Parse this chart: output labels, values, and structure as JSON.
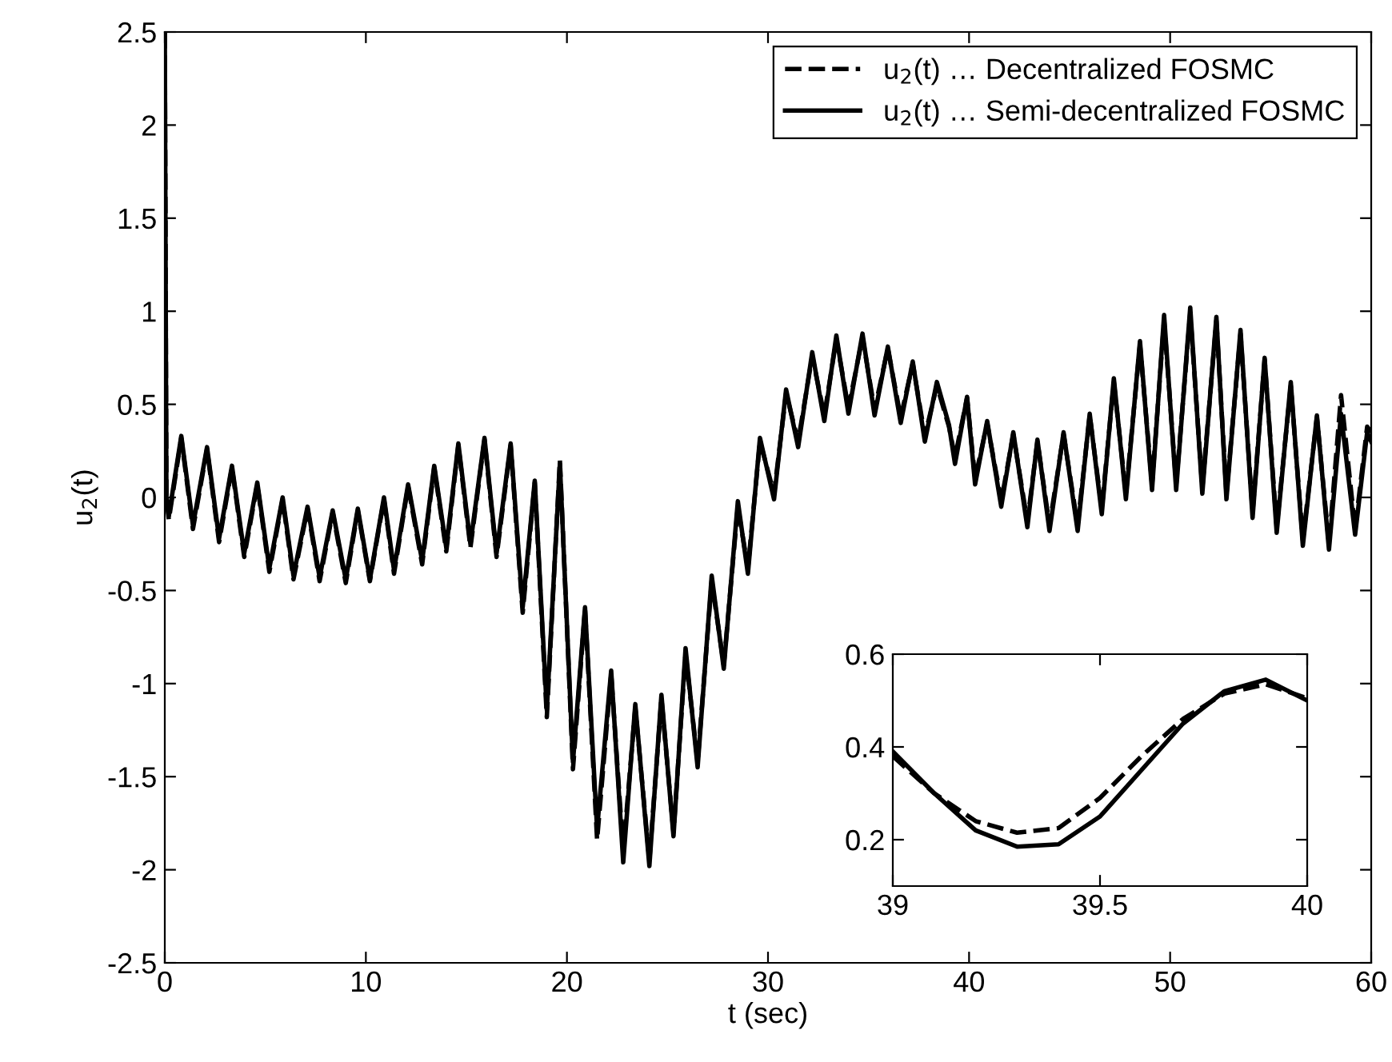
{
  "chart_data": [
    {
      "type": "line",
      "xlabel": "t (sec)",
      "ylabel": "u$_{2}$(t)",
      "xlim": [
        0,
        60
      ],
      "xticks": [
        0,
        10,
        20,
        30,
        40,
        50,
        60
      ],
      "ylim": [
        -2.5,
        2.5
      ],
      "yticks": [
        -2.5,
        -2,
        -1.5,
        -1,
        -0.5,
        0,
        0.5,
        1,
        1.5,
        2,
        2.5
      ],
      "grid": false,
      "legend": "top right",
      "x": [
        0,
        0.08,
        0.2,
        0.82,
        1.4,
        2.1,
        2.7,
        3.34,
        3.95,
        4.6,
        5.2,
        5.86,
        6.4,
        7.1,
        7.7,
        8.35,
        9.0,
        9.6,
        10.2,
        10.9,
        11.4,
        12.1,
        12.8,
        13.4,
        14.0,
        14.6,
        15.2,
        15.9,
        16.5,
        17.2,
        17.8,
        18.4,
        19.0,
        19.65,
        20.3,
        20.9,
        21.5,
        22.2,
        22.8,
        23.4,
        24.1,
        24.7,
        25.3,
        25.9,
        26.5,
        27.2,
        27.8,
        28.5,
        29.0,
        29.6,
        30.3,
        30.9,
        31.5,
        32.2,
        32.8,
        33.4,
        34.0,
        34.7,
        35.3,
        35.96,
        36.6,
        37.2,
        37.8,
        38.4,
        39.0,
        39.3,
        39.9,
        40.3,
        40.9,
        41.6,
        42.2,
        42.9,
        43.4,
        44.0,
        44.7,
        45.4,
        46.0,
        46.6,
        47.2,
        47.8,
        48.5,
        49.1,
        49.7,
        50.3,
        51.0,
        51.6,
        52.3,
        52.8,
        53.5,
        54.1,
        54.7,
        55.3,
        56.0,
        56.6,
        57.3,
        57.9,
        58.5,
        59.2,
        59.8,
        60
      ],
      "series": [
        {
          "name": "u$_{2}$(t) … Decentralized FOSMC",
          "color": "#000000",
          "line_style": "dashed",
          "values": [
            2.5,
            0.0,
            -0.12,
            0.32,
            -0.17,
            0.26,
            -0.24,
            0.16,
            -0.32,
            0.07,
            -0.4,
            -0.01,
            -0.44,
            -0.06,
            -0.45,
            -0.08,
            -0.46,
            -0.07,
            -0.45,
            -0.01,
            -0.41,
            0.06,
            -0.36,
            0.16,
            -0.29,
            0.28,
            -0.27,
            0.31,
            -0.32,
            0.28,
            -0.62,
            0.08,
            -1.18,
            0.2,
            -1.46,
            -0.6,
            -1.84,
            -0.95,
            -1.9,
            -1.13,
            -1.95,
            -1.08,
            -1.8,
            -0.84,
            -1.42,
            -0.45,
            -0.9,
            -0.05,
            -0.38,
            0.3,
            0.02,
            0.56,
            0.3,
            0.76,
            0.44,
            0.85,
            0.48,
            0.86,
            0.47,
            0.8,
            0.43,
            0.72,
            0.33,
            0.6,
            0.38,
            0.215,
            0.535,
            0.1,
            0.4,
            -0.02,
            0.34,
            -0.13,
            0.3,
            -0.15,
            0.34,
            -0.15,
            0.44,
            -0.06,
            0.62,
            0.02,
            0.82,
            0.07,
            0.95,
            0.07,
            0.99,
            0.05,
            0.95,
            0.02,
            0.88,
            -0.08,
            0.74,
            -0.16,
            0.6,
            -0.23,
            0.43,
            -0.25,
            0.55,
            -0.17,
            0.38,
            0.35
          ]
        },
        {
          "name": "u$_{2}$(t) … Semi-decentralized FOSMC",
          "color": "#000000",
          "line_style": "solid",
          "values": [
            2.5,
            0.0,
            -0.1,
            0.33,
            -0.15,
            0.27,
            -0.22,
            0.17,
            -0.3,
            0.08,
            -0.38,
            0.0,
            -0.42,
            -0.05,
            -0.43,
            -0.07,
            -0.44,
            -0.06,
            -0.44,
            0.0,
            -0.39,
            0.07,
            -0.34,
            0.17,
            -0.27,
            0.29,
            -0.25,
            0.32,
            -0.3,
            0.29,
            -0.59,
            0.09,
            -1.14,
            0.18,
            -1.42,
            -0.59,
            -1.78,
            -0.93,
            -1.96,
            -1.11,
            -1.98,
            -1.06,
            -1.82,
            -0.81,
            -1.45,
            -0.42,
            -0.92,
            -0.02,
            -0.41,
            0.32,
            -0.01,
            0.58,
            0.27,
            0.78,
            0.41,
            0.87,
            0.45,
            0.88,
            0.44,
            0.81,
            0.4,
            0.73,
            0.3,
            0.62,
            0.39,
            0.18,
            0.54,
            0.07,
            0.41,
            -0.05,
            0.35,
            -0.16,
            0.31,
            -0.18,
            0.35,
            -0.18,
            0.45,
            -0.09,
            0.64,
            -0.01,
            0.84,
            0.04,
            0.98,
            0.04,
            1.02,
            0.02,
            0.97,
            -0.01,
            0.9,
            -0.11,
            0.75,
            -0.19,
            0.62,
            -0.26,
            0.44,
            -0.28,
            0.45,
            -0.2,
            0.35,
            0.3
          ]
        }
      ]
    },
    {
      "type": "line",
      "xlim": [
        39,
        40
      ],
      "xticks": [
        39,
        39.5,
        40
      ],
      "ylim": [
        0.1,
        0.6
      ],
      "yticks": [
        0.2,
        0.4,
        0.6
      ],
      "grid": false,
      "x": [
        39,
        39.1,
        39.2,
        39.3,
        39.4,
        39.5,
        39.6,
        39.7,
        39.8,
        39.9,
        40
      ],
      "series": [
        {
          "color": "#000000",
          "line_style": "dashed",
          "values": [
            0.38,
            0.3,
            0.24,
            0.215,
            0.225,
            0.29,
            0.38,
            0.46,
            0.515,
            0.535,
            0.505
          ]
        },
        {
          "color": "#000000",
          "line_style": "solid",
          "values": [
            0.39,
            0.3,
            0.22,
            0.185,
            0.19,
            0.25,
            0.35,
            0.45,
            0.52,
            0.545,
            0.5
          ]
        }
      ]
    }
  ]
}
